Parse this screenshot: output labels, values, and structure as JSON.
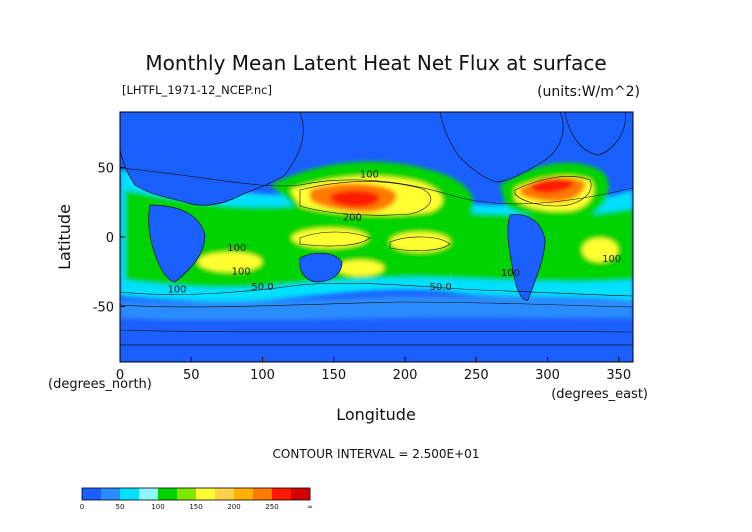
{
  "chart_data": {
    "type": "heatmap",
    "title": "Monthly Mean Latent Heat Net Flux at surface",
    "source_file": "[LHTFL_1971-12_NCEP.nc]",
    "units": "(units:W/m^2)",
    "xlabel": "Longitude",
    "ylabel": "Latitude",
    "x_unit_label": "(degrees_east)",
    "y_unit_label": "(degrees_north)",
    "xlim": [
      0,
      360
    ],
    "ylim": [
      -90,
      90
    ],
    "x_ticks": [
      "0",
      "50",
      "100",
      "150",
      "200",
      "250",
      "300",
      "350"
    ],
    "y_ticks": [
      "50",
      "0",
      "-50"
    ],
    "contour_interval_text": "CONTOUR INTERVAL = 2.500E+01",
    "colorbar": {
      "levels": [
        0,
        25,
        50,
        75,
        100,
        125,
        150,
        175,
        200,
        225,
        250,
        275
      ],
      "tick_labels": [
        "0",
        "50",
        "100",
        "150",
        "200",
        "250",
        "∞"
      ],
      "colors": [
        "#1a5fff",
        "#2a8cff",
        "#00e0ff",
        "#8ff6ff",
        "#00d400",
        "#7ee800",
        "#ffff33",
        "#ffd24a",
        "#ffb000",
        "#ff7a00",
        "#ff1a00",
        "#d40000"
      ]
    },
    "contour_labels": [
      {
        "text": "100",
        "lon": 175,
        "lat": 43
      },
      {
        "text": "200",
        "lon": 163,
        "lat": 12
      },
      {
        "text": "100",
        "lon": 82,
        "lat": -10
      },
      {
        "text": "100",
        "lon": 85,
        "lat": -27
      },
      {
        "text": "100",
        "lon": 40,
        "lat": -40
      },
      {
        "text": "50.0",
        "lon": 100,
        "lat": -38
      },
      {
        "text": "50.0",
        "lon": 225,
        "lat": -38
      },
      {
        "text": "100",
        "lon": 274,
        "lat": -28
      },
      {
        "text": "100",
        "lon": 345,
        "lat": -18
      }
    ]
  }
}
